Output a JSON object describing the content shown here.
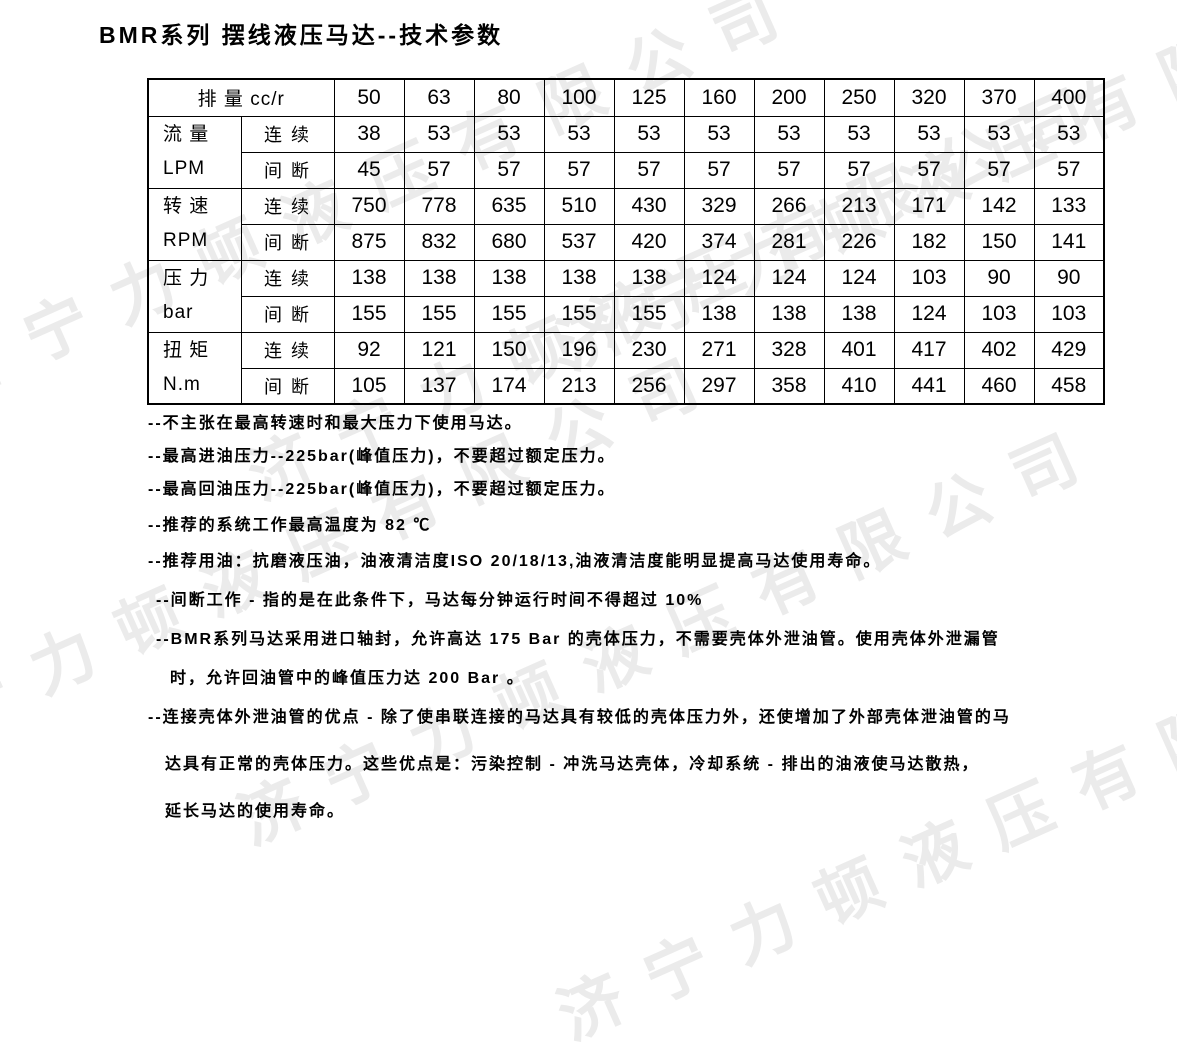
{
  "title": "BMR系列 摆线液压马达--技术参数",
  "watermark": {
    "text": "济宁力顿液压有限公司",
    "color": "#ebebeb"
  },
  "table": {
    "header_label": "排 量 cc/r",
    "displacements": [
      "50",
      "63",
      "80",
      "100",
      "125",
      "160",
      "200",
      "250",
      "320",
      "370",
      "400"
    ],
    "row_groups": [
      {
        "param": "流 量",
        "unit": "LPM",
        "rows": [
          {
            "mode": "连 续",
            "values": [
              "38",
              "53",
              "53",
              "53",
              "53",
              "53",
              "53",
              "53",
              "53",
              "53",
              "53"
            ]
          },
          {
            "mode": "间 断",
            "values": [
              "45",
              "57",
              "57",
              "57",
              "57",
              "57",
              "57",
              "57",
              "57",
              "57",
              "57"
            ]
          }
        ]
      },
      {
        "param": "转 速",
        "unit": "RPM",
        "rows": [
          {
            "mode": "连 续",
            "values": [
              "750",
              "778",
              "635",
              "510",
              "430",
              "329",
              "266",
              "213",
              "171",
              "142",
              "133"
            ]
          },
          {
            "mode": "间 断",
            "values": [
              "875",
              "832",
              "680",
              "537",
              "420",
              "374",
              "281",
              "226",
              "182",
              "150",
              "141"
            ]
          }
        ]
      },
      {
        "param": "压 力",
        "unit": "bar",
        "rows": [
          {
            "mode": "连 续",
            "values": [
              "138",
              "138",
              "138",
              "138",
              "138",
              "124",
              "124",
              "124",
              "103",
              "90",
              "90"
            ]
          },
          {
            "mode": "间 断",
            "values": [
              "155",
              "155",
              "155",
              "155",
              "155",
              "138",
              "138",
              "138",
              "124",
              "103",
              "103"
            ]
          }
        ]
      },
      {
        "param": "扭 矩",
        "unit": "N.m",
        "rows": [
          {
            "mode": "连 续",
            "values": [
              "92",
              "121",
              "150",
              "196",
              "230",
              "271",
              "328",
              "401",
              "417",
              "402",
              "429"
            ]
          },
          {
            "mode": "间 断",
            "values": [
              "105",
              "137",
              "174",
              "213",
              "256",
              "297",
              "358",
              "410",
              "441",
              "460",
              "458"
            ]
          }
        ]
      }
    ]
  },
  "notes": [
    {
      "text": "--不主张在最高转速时和最大压力下使用马达。",
      "indent": 0,
      "gap": 0
    },
    {
      "text": "--最高进油压力--225bar(峰值压力)，不要超过额定压力。",
      "indent": 0,
      "gap": 0
    },
    {
      "text": "--最高回油压力--225bar(峰值压力)，不要超过额定压力。",
      "indent": 0,
      "gap": 1
    },
    {
      "text": "--推荐的系统工作最高温度为 82 ℃",
      "indent": 0,
      "gap": 1
    },
    {
      "text": "--推荐用油：抗磨液压油，油液清洁度ISO 20/18/13,油液清洁度能明显提高马达使用寿命。",
      "indent": 0,
      "gap": 2
    },
    {
      "text": "--间断工作 - 指的是在此条件下，马达每分钟运行时间不得超过 10%",
      "indent": 1,
      "gap": 2
    },
    {
      "text": "--BMR系列马达采用进口轴封，允许高达 175 Bar 的壳体压力，不需要壳体外泄油管。使用壳体外泄漏管",
      "indent": 1,
      "gap": 2
    },
    {
      "text": "时，允许回油管中的峰值压力达 200 Bar 。",
      "indent": 2,
      "gap": 2
    },
    {
      "text": "--连接壳体外泄油管的优点 - 除了使串联连接的马达具有较低的壳体压力外，还使增加了外部壳体泄油管的马",
      "indent": 0,
      "gap": 3
    },
    {
      "text": "达具有正常的壳体压力。这些优点是：污染控制 - 冲洗马达壳体，冷却系统 - 排出的油液使马达散热，",
      "indent": 3,
      "gap": 3
    },
    {
      "text": "延长马达的使用寿命。",
      "indent": 3,
      "gap": 0
    }
  ]
}
